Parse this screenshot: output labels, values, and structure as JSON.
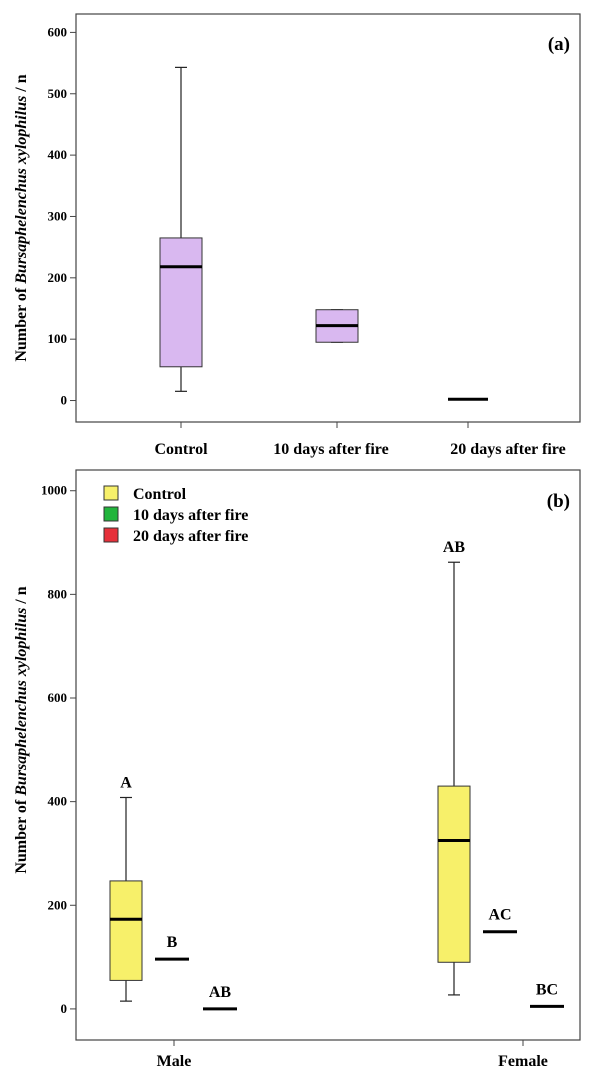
{
  "chart_data": [
    {
      "type": "box",
      "panel_label": "(a)",
      "ylabel_prefix": "Number of ",
      "ylabel_italic": "Bursaphelenchus xylophilus",
      "ylabel_suffix": " / n",
      "ylim": [
        -35,
        630
      ],
      "yticks": [
        0,
        100,
        200,
        300,
        400,
        500,
        600
      ],
      "categories": [
        "Control",
        "10 days after fire",
        "20 days after fire"
      ],
      "box_color": "#d9b8f0",
      "boxes": [
        {
          "category": "Control",
          "min": 15,
          "q1": 55,
          "median": 218,
          "q3": 265,
          "max": 543
        },
        {
          "category": "10 days after fire",
          "min": 95,
          "q1": 95,
          "median": 122,
          "q3": 148,
          "max": 148
        },
        {
          "category": "20 days after fire",
          "min": 2,
          "q1": 2,
          "median": 2,
          "q3": 2,
          "max": 2
        }
      ]
    },
    {
      "type": "box",
      "panel_label": "(b)",
      "ylabel_prefix": "Number of ",
      "ylabel_italic": "Bursaphelenchus xylophilus",
      "ylabel_suffix": " / n",
      "ylim": [
        -60,
        1040
      ],
      "yticks": [
        0,
        200,
        400,
        600,
        800,
        1000
      ],
      "categories": [
        "Male",
        "Female"
      ],
      "legend": [
        {
          "name": "Control",
          "color": "#f7f06a"
        },
        {
          "name": "10 days after fire",
          "color": "#22b53c"
        },
        {
          "name": "20 days after fire",
          "color": "#e6303a"
        }
      ],
      "boxes": [
        {
          "category": "Male",
          "series": "Control",
          "min": 15,
          "q1": 55,
          "median": 173,
          "q3": 247,
          "max": 408,
          "label": "A"
        },
        {
          "category": "Male",
          "series": "10 days after fire",
          "min": 96,
          "q1": 96,
          "median": 96,
          "q3": 96,
          "max": 96,
          "label": "B"
        },
        {
          "category": "Male",
          "series": "20 days after fire",
          "min": 0,
          "q1": 0,
          "median": 0,
          "q3": 0,
          "max": 0,
          "label": "AB"
        },
        {
          "category": "Female",
          "series": "Control",
          "min": 27,
          "q1": 90,
          "median": 325,
          "q3": 430,
          "max": 862,
          "label": "AB"
        },
        {
          "category": "Female",
          "series": "10 days after fire",
          "min": 149,
          "q1": 149,
          "median": 149,
          "q3": 149,
          "max": 149,
          "label": "AC"
        },
        {
          "category": "Female",
          "series": "20 days after fire",
          "min": 5,
          "q1": 5,
          "median": 5,
          "q3": 5,
          "max": 5,
          "label": "BC"
        }
      ]
    }
  ]
}
